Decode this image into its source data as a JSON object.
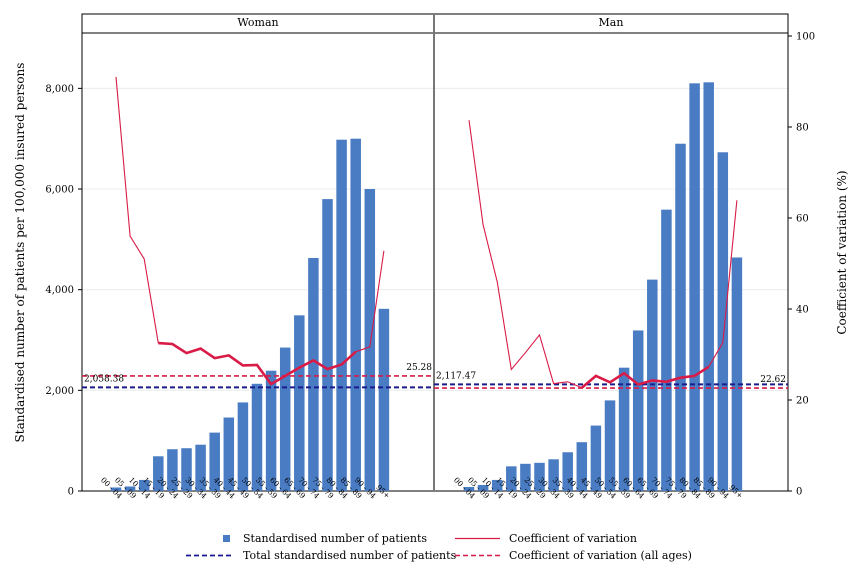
{
  "chart_data": {
    "type": "bar",
    "ylabel": "Standardised number of patients per 100,000 insured persons",
    "y2label": "Coefficient of variation (%)",
    "ylim": [
      0,
      9100
    ],
    "y2lim": [
      0,
      100
    ],
    "yticks": [
      "0",
      "2,000",
      "4,000",
      "6,000",
      "8,000"
    ],
    "yticks_values": [
      0,
      2000,
      4000,
      6000,
      8000
    ],
    "y2ticks": [
      "0",
      "20",
      "40",
      "60",
      "80",
      "100"
    ],
    "y2ticks_values": [
      0,
      20,
      40,
      60,
      80,
      100
    ],
    "grid": true,
    "legend_position": "bottom",
    "categories": [
      "00 - 04",
      "05 - 09",
      "10 - 14",
      "15 - 19",
      "20 - 24",
      "25 - 29",
      "30 - 34",
      "35 - 39",
      "40 - 44",
      "45 - 49",
      "50 - 54",
      "55 - 59",
      "60 - 64",
      "65 - 69",
      "70 - 74",
      "75 - 79",
      "80 - 84",
      "85 - 89",
      "90 - 94",
      "95+"
    ],
    "category_labels": [
      "00 - 04",
      "05 - 09",
      "10 - 14",
      "15 - 19",
      "20 - 24",
      "25 - 29",
      "30 - 34",
      "35 - 39",
      "40 - 44",
      "45 - 49",
      "50 - 54",
      "55 - 59",
      "60 - 64",
      "65 - 69",
      "70 - 74",
      "75 - 79",
      "80 - 84",
      "85 - 89",
      "90 - 94",
      "95+"
    ],
    "panels": [
      {
        "title": "Woman",
        "bars": [
          70,
          90,
          220,
          690,
          830,
          850,
          920,
          1160,
          1460,
          1760,
          2130,
          2390,
          2850,
          3490,
          4630,
          5800,
          6980,
          7000,
          6000,
          3620
        ],
        "cv": [
          91,
          56,
          51,
          32.5,
          32.3,
          30.3,
          31.3,
          29.2,
          29.8,
          27.6,
          27.7,
          23.5,
          25.3,
          27.1,
          28.7,
          26.8,
          27.8,
          30.6,
          31.7,
          52.8
        ],
        "cv_thick_from_index": 3,
        "total_patients": 2058.38,
        "total_label": "2,058.38",
        "cv_all_ages": 25.28,
        "cv_all_ages_label": "25.28"
      },
      {
        "title": "Man",
        "bars": [
          80,
          120,
          220,
          490,
          540,
          560,
          630,
          770,
          970,
          1300,
          1800,
          2450,
          3190,
          4200,
          5590,
          6900,
          8100,
          8120,
          6730,
          4640
        ],
        "cv": [
          81.5,
          58.5,
          46,
          26.7,
          30.4,
          34.3,
          23.6,
          24,
          22.7,
          25.3,
          23.9,
          25.9,
          23.4,
          24.3,
          24,
          24.9,
          25.3,
          27.3,
          32.6,
          63.9
        ],
        "cv_thick_from_index": 8,
        "total_patients": 2117.47,
        "total_label": "2,117.47",
        "cv_all_ages": 22.62,
        "cv_all_ages_label": "22.62"
      }
    ],
    "legend": [
      {
        "name": "Standardised number of patients",
        "style": "square",
        "color": "#4a7cc4"
      },
      {
        "name": "Coefficient of variation",
        "style": "line",
        "color": "#d81b47"
      },
      {
        "name": "Total standardised number of patients",
        "style": "dashed",
        "color": "#1a1a8c"
      },
      {
        "name": "Coefficient of variation (all ages)",
        "style": "dashed",
        "color": "#d81b47"
      }
    ],
    "colors": {
      "bar": "#4a7cc4",
      "cv": "#d81b47",
      "total": "#1a1a8c",
      "cv_all": "#d81b47"
    }
  }
}
